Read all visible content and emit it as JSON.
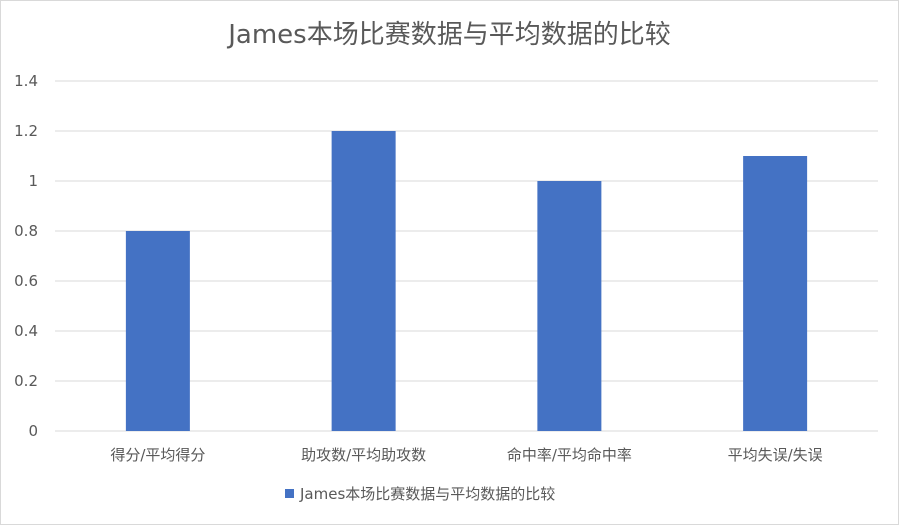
{
  "chart_data": {
    "type": "bar",
    "title": "James本场比赛数据与平均数据的比较",
    "categories": [
      "得分/平均得分",
      "助攻数/平均助攻数",
      "命中率/平均命中率",
      "平均失误/失误"
    ],
    "series": [
      {
        "name": "James本场比赛数据与平均数据的比较",
        "values": [
          0.8,
          1.2,
          1.0,
          1.1
        ]
      }
    ],
    "ylim": [
      0,
      1.4
    ],
    "yticks": [
      "0",
      "0.2",
      "0.4",
      "0.6",
      "0.8",
      "1",
      "1.2",
      "1.4"
    ],
    "xlabel": "",
    "ylabel": "",
    "grid": true,
    "legend_position": "bottom",
    "colors": {
      "bar": "#4472C4",
      "grid": "#d9d9d9",
      "text": "#595959"
    }
  }
}
